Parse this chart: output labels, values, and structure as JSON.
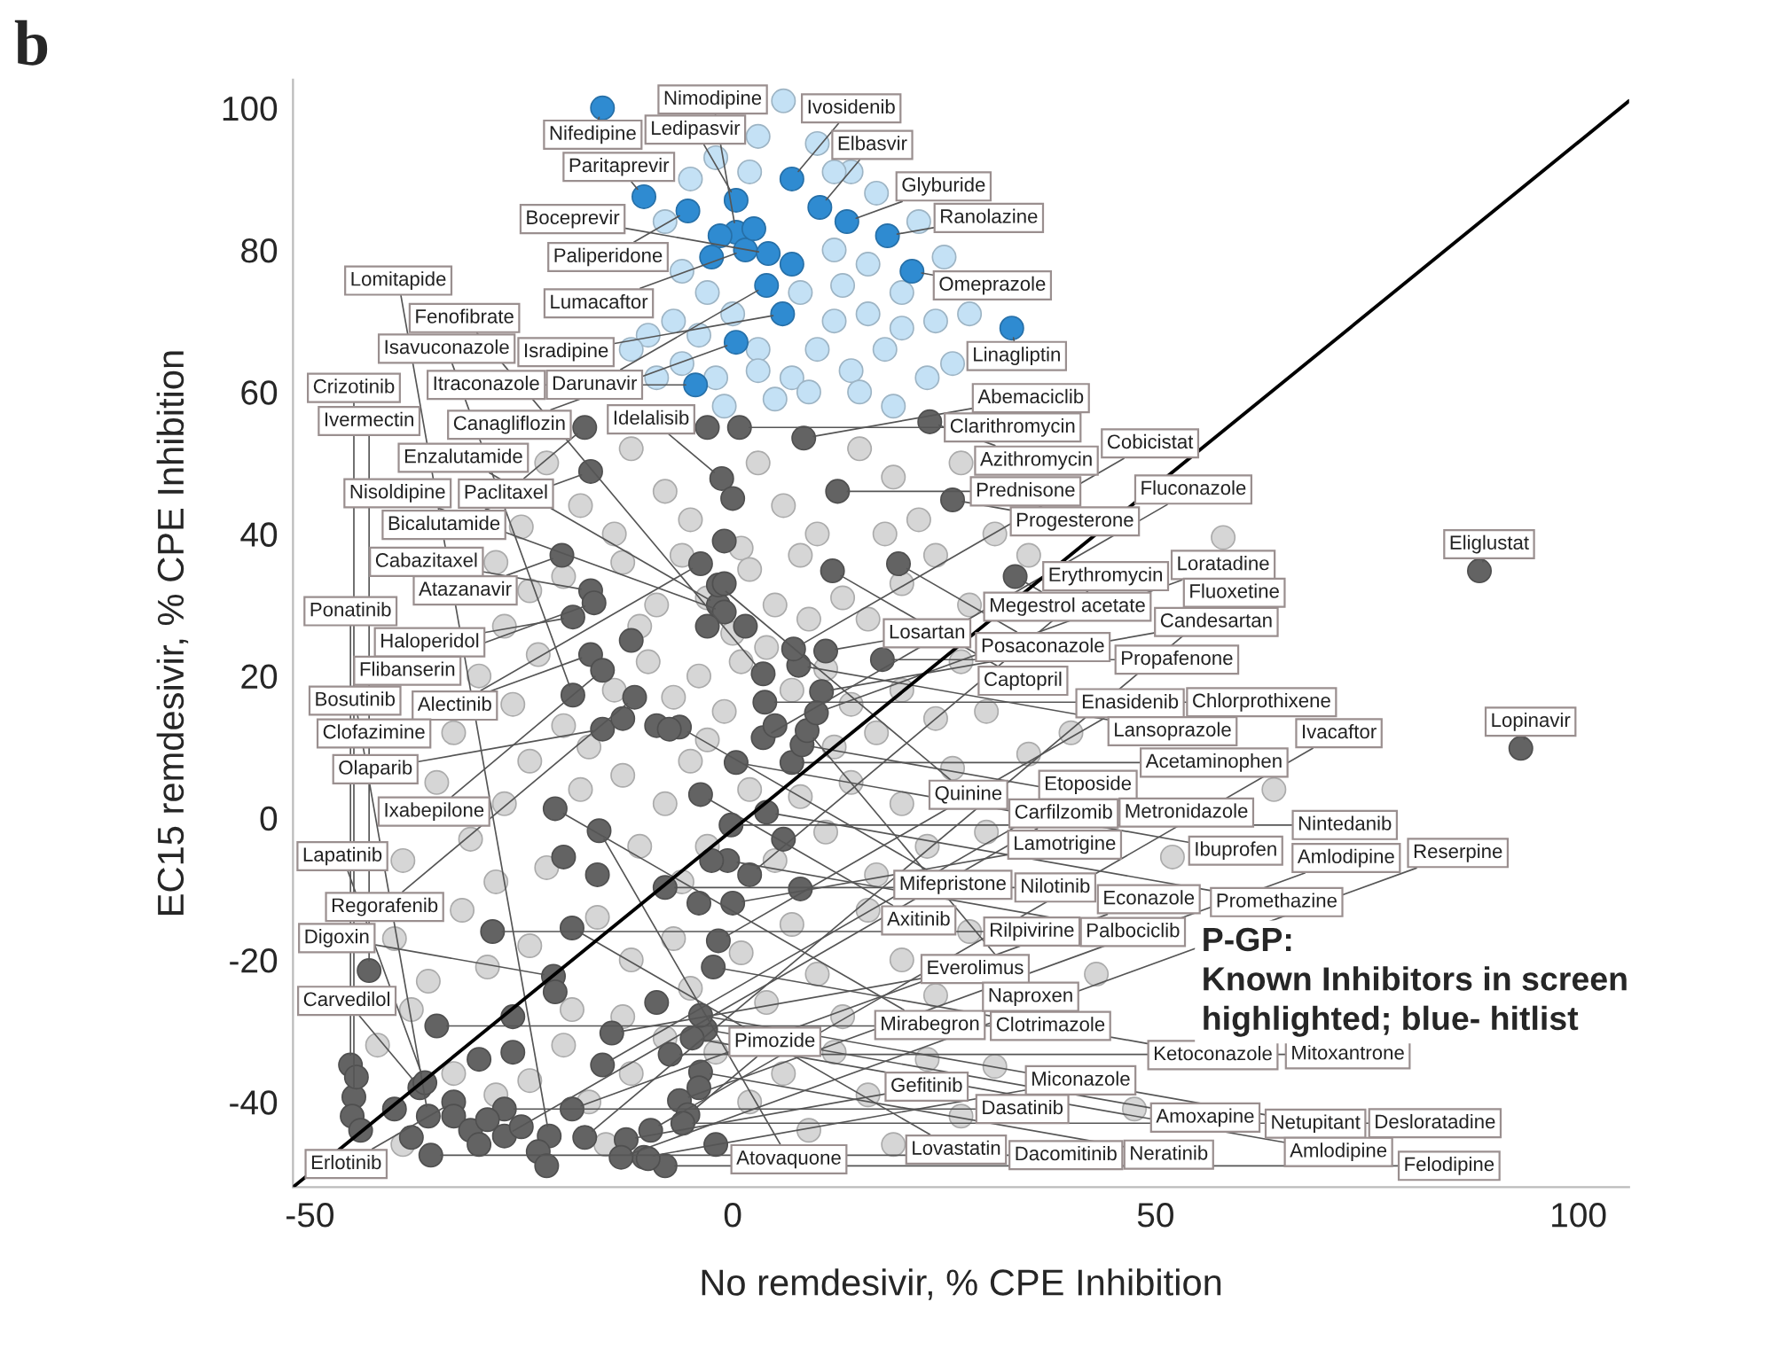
{
  "chart_data": {
    "type": "scatter",
    "title": "b",
    "xlabel": "No remdesivir, % CPE Inhibition",
    "ylabel": "EC15 remdesivir, % CPE Inhibition",
    "xlim": [
      -52,
      106
    ],
    "ylim": [
      -52,
      104
    ],
    "xticks": [
      -50,
      0,
      50,
      100
    ],
    "yticks": [
      -40,
      -20,
      0,
      20,
      40,
      60,
      80,
      100
    ],
    "grid": false,
    "series": [
      {
        "marker": "circle",
        "color": "#d6d6d6",
        "x": [
          -22,
          -18,
          -12,
          -8,
          -5,
          3,
          6,
          10,
          15,
          19,
          22,
          -25,
          -14,
          27,
          1,
          -28,
          -24,
          -20,
          -13,
          -9,
          -6,
          -3,
          2,
          5,
          8,
          13,
          16,
          20,
          24,
          28,
          -27,
          -11,
          0,
          9,
          31,
          35,
          18,
          -30,
          -26,
          -23,
          -20,
          -14,
          -10,
          -7,
          -4,
          -1,
          1,
          4,
          7,
          11,
          14,
          17,
          20,
          24,
          27,
          -33,
          -17,
          -3,
          12,
          30,
          -35,
          -31,
          -27,
          -24,
          -22,
          -18,
          -13,
          -11,
          -8,
          -5,
          -3,
          2,
          5,
          8,
          11,
          14,
          17,
          20,
          23,
          26,
          -39,
          -28,
          30,
          35,
          -6,
          -40,
          -36,
          -32,
          -29,
          -24,
          -19,
          -16,
          -12,
          -7,
          -5,
          1,
          4,
          7,
          10,
          13,
          16,
          20,
          24,
          -13,
          -38,
          28,
          -42,
          -39,
          -33,
          -28,
          -24,
          -20,
          -17,
          -12,
          -8,
          -2,
          2,
          6,
          9,
          12,
          16,
          19,
          23,
          27,
          -15,
          31,
          64,
          52,
          58,
          47.5,
          43,
          40
        ],
        "values": [
          50,
          44,
          52,
          46,
          42,
          50,
          44,
          40,
          52,
          48,
          42,
          41,
          40,
          50,
          38,
          36,
          32,
          34,
          36,
          30,
          37,
          31,
          35,
          30,
          37,
          31,
          28,
          33,
          37,
          30,
          27,
          27,
          26,
          28,
          40,
          37,
          40,
          20,
          16,
          23,
          13,
          18,
          22,
          17,
          20,
          15,
          22,
          24,
          18,
          21,
          16,
          12,
          18,
          14,
          22,
          12,
          10,
          11,
          10,
          15,
          5,
          -3,
          2,
          8,
          -7,
          4,
          6,
          -4,
          2,
          8,
          -4,
          4,
          -6,
          3,
          -2,
          5,
          -8,
          2,
          -4,
          7,
          -6,
          -9,
          -2,
          9,
          -9,
          -17,
          -23,
          -13,
          -21,
          -18,
          -27,
          -14,
          -20,
          -17,
          -24,
          -19,
          -26,
          -15,
          -22,
          -28,
          -13,
          -20,
          -25,
          -28,
          -27,
          -16,
          -32,
          -46,
          -36,
          -39,
          -37,
          -32,
          -40,
          -36,
          -31,
          -33,
          -40,
          -36,
          -44,
          -33,
          -39,
          -46,
          -34,
          -42,
          -46,
          -35,
          4,
          -5.5,
          39.5,
          -41,
          -22,
          12
        ]
      },
      {
        "marker": "circle",
        "color": "#c4e1f5",
        "x": [
          6,
          3,
          -2,
          10,
          14,
          -5,
          2,
          17,
          -8,
          12,
          16,
          20,
          8,
          -3,
          -7,
          -10,
          0,
          3,
          10,
          14,
          18,
          23,
          26,
          -6,
          -9,
          -2,
          7,
          12,
          16,
          28,
          22,
          25,
          -12,
          -4,
          5,
          9,
          15,
          19,
          -1,
          12,
          -6,
          13,
          24,
          20,
          3
        ],
        "values": [
          101,
          96,
          93,
          95,
          91,
          90,
          91,
          88,
          84,
          80,
          78,
          74,
          74,
          74,
          70,
          68,
          71,
          66,
          66,
          63,
          66,
          62,
          64,
          64,
          62,
          62,
          62,
          70,
          71,
          71,
          84,
          79,
          66,
          68,
          59,
          60,
          60,
          58,
          58,
          91,
          77,
          75,
          70,
          69,
          63
        ]
      },
      {
        "marker": "circle",
        "color": "#636363",
        "x": [
          0.8,
          -17.5,
          -1.7,
          -1.3,
          -16.8,
          8.4,
          23.3,
          12.4,
          26,
          19.6,
          33.4,
          11.8,
          -20.2,
          -18.9,
          -16.8,
          -16.4,
          -1.7,
          -3.8,
          -1,
          -16.8,
          -15.4,
          -18.9,
          -11.6,
          -15.4,
          -6.3,
          -21,
          -15.8,
          -3.8,
          -36,
          -27,
          -37,
          -28.4,
          -33,
          -19,
          -43,
          -8,
          -21.2,
          -35,
          -14.3,
          -45.2,
          -36.4,
          -44.8,
          -35.7,
          -27,
          -10.5,
          -19,
          -15.4,
          -3.2,
          -1.7,
          -2.3,
          -0.6,
          2,
          0,
          7,
          8.2,
          8.8,
          10.5,
          17.7,
          11,
          7.8,
          7.2,
          3.8,
          3.6,
          9.9,
          3.6,
          0.4,
          -0.2,
          4,
          -3.8,
          -4.8,
          -6.3,
          -3.8,
          -7.4,
          -5.3,
          -5.9,
          -9.7,
          -12.6,
          -17.5,
          -21.7,
          -8,
          -13.2,
          88.3,
          93.2,
          -44.5,
          -45,
          -44,
          -33,
          -31,
          -29,
          -25,
          -23,
          -22,
          -30,
          -10,
          -2,
          -40,
          -38,
          -26,
          -26,
          -30,
          -21,
          -9,
          -4,
          -2.5,
          -4,
          -9,
          -13,
          -7.5,
          -12,
          -1,
          -3,
          0,
          -3,
          -1,
          1.5,
          5,
          6,
          8,
          -20,
          -16
        ],
        "values": [
          55,
          55,
          30,
          47.8,
          48.8,
          53.5,
          55.8,
          46,
          44.8,
          35.8,
          34,
          34.8,
          37,
          28.3,
          32,
          30.3,
          32.8,
          35.8,
          29,
          23,
          20.8,
          17.3,
          17,
          12.5,
          12.8,
          1.3,
          -1.8,
          3.3,
          -42,
          -41,
          -38,
          -16,
          -40,
          -15.5,
          -21.5,
          -9.8,
          -22.3,
          -29.3,
          -30.3,
          -34.8,
          -37.3,
          -39.3,
          -47.5,
          -44.8,
          -47.8,
          -41,
          -34.8,
          -29.8,
          -17.3,
          -21,
          -6,
          -8,
          -12,
          7.8,
          10.3,
          12.3,
          17.8,
          22.3,
          23.5,
          21.5,
          23.8,
          16.3,
          20.3,
          14.8,
          11.3,
          7.8,
          -1,
          0.8,
          -27.8,
          -31,
          -39.8,
          -35.8,
          -33.3,
          -41.8,
          -43,
          -44,
          -45.3,
          -45,
          -44.8,
          -49,
          -47.8,
          34.8,
          9.8,
          -36.5,
          -42,
          -44,
          -42,
          -44,
          -42.5,
          -43.5,
          -47,
          -49,
          -46,
          -48,
          -46,
          -41,
          -45,
          -28,
          -33,
          -34,
          -24.5,
          -26,
          -38,
          -6,
          -12,
          13,
          14,
          12.5,
          25,
          33,
          27,
          45,
          55,
          39,
          27,
          13,
          -3,
          -10,
          -5.5,
          -8
        ]
      },
      {
        "marker": "circle",
        "color": "#2f8bd1",
        "x": [
          -15.4,
          -10.5,
          -5.3,
          0.4,
          7,
          10.3,
          13.5,
          18.3,
          21.2,
          0.4,
          1.5,
          4.2,
          4,
          5.9,
          33,
          0.4,
          -4.4,
          -1.5,
          2.5,
          -2.5,
          7
        ],
        "values": [
          100,
          87.5,
          85.5,
          87,
          90,
          86,
          84,
          82,
          77,
          82.5,
          80,
          79.5,
          75,
          71,
          69,
          67,
          61,
          82,
          83,
          79,
          78
        ]
      },
      {
        "type": "line",
        "color": "#000000",
        "line_style": "solid",
        "x": [
          -52,
          106
        ],
        "values": [
          -52,
          101
        ]
      }
    ],
    "annotations": [
      {
        "text": "Nifedipine",
        "x": -15.4,
        "y": 100
      },
      {
        "text": "Paritaprevir",
        "x": -10.5,
        "y": 87.5
      },
      {
        "text": "Paliperidone",
        "x": -5.3,
        "y": 85.5
      },
      {
        "text": "Ledipasvir",
        "x": 0.4,
        "y": 87
      },
      {
        "text": "Ivosidenib",
        "x": 7,
        "y": 90
      },
      {
        "text": "Elbasvir",
        "x": 10.3,
        "y": 86
      },
      {
        "text": "Glyburide",
        "x": 13.5,
        "y": 84
      },
      {
        "text": "Ranolazine",
        "x": 18.3,
        "y": 82
      },
      {
        "text": "Omeprazole",
        "x": 21.2,
        "y": 77
      },
      {
        "text": "Nimodipine",
        "x": 0.4,
        "y": 82.5
      },
      {
        "text": "Lumacaftor",
        "x": 1.5,
        "y": 80
      },
      {
        "text": "Boceprevir",
        "x": 4.2,
        "y": 79.5
      },
      {
        "text": "Darunavir",
        "x": 4,
        "y": 75
      },
      {
        "text": "Isradipine",
        "x": 5.9,
        "y": 71
      },
      {
        "text": "Linagliptin",
        "x": 33,
        "y": 69
      },
      {
        "text": "Canagliflozin",
        "x": 0.4,
        "y": 67
      },
      {
        "text": "Itraconazole",
        "x": -4.4,
        "y": 61
      },
      {
        "text": "Clarithromycin",
        "x": 0.8,
        "y": 55
      },
      {
        "text": "Paclitaxel",
        "x": -17.5,
        "y": 55
      },
      {
        "text": "Enzalutamide",
        "x": -1.7,
        "y": 30
      },
      {
        "text": "Idelalisib",
        "x": -1.3,
        "y": 47.8
      },
      {
        "text": "Bicalutamide",
        "x": -16.8,
        "y": 48.8
      },
      {
        "text": "Abemaciclib",
        "x": 8.4,
        "y": 53.5
      },
      {
        "text": "Azithromycin",
        "x": 23.3,
        "y": 55.8
      },
      {
        "text": "Prednisone",
        "x": 12.4,
        "y": 46
      },
      {
        "text": "Progesterone",
        "x": 26,
        "y": 44.8
      },
      {
        "text": "Posaconazole",
        "x": 19.6,
        "y": 35.8
      },
      {
        "text": "Megestrol acetate",
        "x": 33.4,
        "y": 34
      },
      {
        "text": "Captopril",
        "x": 11.8,
        "y": 34.8
      },
      {
        "text": "Atazanavir",
        "x": -20.2,
        "y": 37
      },
      {
        "text": "Haloperidol",
        "x": -18.9,
        "y": 28.3
      },
      {
        "text": "Cabazitaxel",
        "x": -16.8,
        "y": 32
      },
      {
        "text": "Flibanserin",
        "x": -16.4,
        "y": 30.3
      },
      {
        "text": "Quinine",
        "x": -1.7,
        "y": 32.8
      },
      {
        "text": "Alectinib",
        "x": -3.8,
        "y": 35.8
      },
      {
        "text": "Nisoldipine",
        "x": -1,
        "y": 29
      },
      {
        "text": "Clofazimine",
        "x": -16.8,
        "y": 23
      },
      {
        "text": "Ixabepilone",
        "x": -15.4,
        "y": 20.8
      },
      {
        "text": "Isavuconazole",
        "x": -18.9,
        "y": 17.3
      },
      {
        "text": "Regorafenib",
        "x": -11.6,
        "y": 17
      },
      {
        "text": "Olaparib",
        "x": -15.4,
        "y": 12.5
      },
      {
        "text": "Mifepristone",
        "x": -6.3,
        "y": 12.8
      },
      {
        "text": "Mirabegron",
        "x": -21,
        "y": 1.3
      },
      {
        "text": "Atovaquone",
        "x": -15.8,
        "y": -1.8
      },
      {
        "text": "Axitinib",
        "x": -3.8,
        "y": 3.3
      },
      {
        "text": "Bosutinib",
        "x": -36,
        "y": -42
      },
      {
        "text": "Dasatinib",
        "x": -27,
        "y": -41
      },
      {
        "text": "Carvedilol",
        "x": -37,
        "y": -38
      },
      {
        "text": "Rilpivirine",
        "x": -28.4,
        "y": -16
      },
      {
        "text": "Erlotinib",
        "x": -33,
        "y": -40
      },
      {
        "text": "Lovastatin",
        "x": -19,
        "y": -15.5
      },
      {
        "text": "Ivermectin",
        "x": -43,
        "y": -21.5
      },
      {
        "text": "Nilotinib",
        "x": -8,
        "y": -9.8
      },
      {
        "text": "Digoxin",
        "x": -21.2,
        "y": -22.3
      },
      {
        "text": "Clotrimazole",
        "x": -35,
        "y": -29.3
      },
      {
        "text": "Everolimus",
        "x": -14.3,
        "y": -30.3
      },
      {
        "text": "Ponatinib",
        "x": -45.2,
        "y": -34.8
      },
      {
        "text": "Lapatinib",
        "x": -36.4,
        "y": -37.3
      },
      {
        "text": "Crizotinib",
        "x": -44.8,
        "y": -39.3
      },
      {
        "text": "Dacomitinib",
        "x": -35.7,
        "y": -47.5
      },
      {
        "text": "Carfilzomib",
        "x": -27,
        "y": -44.8
      },
      {
        "text": "Miconazole",
        "x": -10.5,
        "y": -47.8
      },
      {
        "text": "Econazole",
        "x": -19,
        "y": -41
      },
      {
        "text": "Etoposide",
        "x": -15.4,
        "y": -34.8
      },
      {
        "text": "Amoxapine",
        "x": -3.2,
        "y": -29.8
      },
      {
        "text": "Enasidenib",
        "x": -1.7,
        "y": -17.3
      },
      {
        "text": "Ketoconazole",
        "x": -2.3,
        "y": -21
      },
      {
        "text": "Palbociclib",
        "x": -0.6,
        "y": -6
      },
      {
        "text": "Erythromycin",
        "x": 2,
        "y": -8
      },
      {
        "text": "Lamotrigine",
        "x": 0,
        "y": -12
      },
      {
        "text": "Acetaminophen",
        "x": 7,
        "y": 7.8
      },
      {
        "text": "Metronidazole",
        "x": 8.2,
        "y": 10.3
      },
      {
        "text": "Naproxen",
        "x": 8.8,
        "y": 12.3
      },
      {
        "text": "Candesartan",
        "x": 10.5,
        "y": 17.8
      },
      {
        "text": "Propafenone",
        "x": 17.7,
        "y": 22.3
      },
      {
        "text": "Losartan",
        "x": 11,
        "y": 23.5
      },
      {
        "text": "Lansoprazole",
        "x": 7.8,
        "y": 21.5
      },
      {
        "text": "Cobicistat",
        "x": 7.2,
        "y": 23.8
      },
      {
        "text": "Chlorprothixene",
        "x": 3.8,
        "y": 16.3
      },
      {
        "text": "Fenofibrate",
        "x": 3.6,
        "y": 20.3
      },
      {
        "text": "Loratadine",
        "x": 9.9,
        "y": 14.8
      },
      {
        "text": "Fluconazole",
        "x": 3.6,
        "y": 11.3
      },
      {
        "text": "Ibuprofen",
        "x": 0.4,
        "y": 7.8
      },
      {
        "text": "Nintedanib",
        "x": -0.2,
        "y": -1
      },
      {
        "text": "Promethazine",
        "x": 4,
        "y": 0.8
      },
      {
        "text": "Netupitant",
        "x": -3.8,
        "y": -27.8
      },
      {
        "text": "Amlodipine",
        "x": -4.8,
        "y": -31
      },
      {
        "text": "Amlodipine",
        "x": -6.3,
        "y": -39.8
      },
      {
        "text": "Neratinib",
        "x": -3.8,
        "y": -35.8
      },
      {
        "text": "Mitoxantrone",
        "x": -7.4,
        "y": -33.3
      },
      {
        "text": "Pimozide",
        "x": -5.3,
        "y": -41.8
      },
      {
        "text": "Desloratadine",
        "x": -5.9,
        "y": -43
      },
      {
        "text": "Ivacaftor",
        "x": -9.7,
        "y": -44
      },
      {
        "text": "Gefitinib",
        "x": -12.6,
        "y": -45.3
      },
      {
        "text": "Fluoxetine",
        "x": -17.5,
        "y": -45
      },
      {
        "text": "Lomitapide",
        "x": -21.7,
        "y": -44.8
      },
      {
        "text": "Felodipine",
        "x": -8,
        "y": -49
      },
      {
        "text": "Reserpine",
        "x": -13.2,
        "y": -47.8
      },
      {
        "text": "Eliglustat",
        "x": 88.3,
        "y": 34.8
      },
      {
        "text": "Lopinavir",
        "x": 93.2,
        "y": 9.8
      },
      "P-GP:\nKnown Inhibitors in screen\nhighlighted; blue- hitlist"
    ]
  }
}
